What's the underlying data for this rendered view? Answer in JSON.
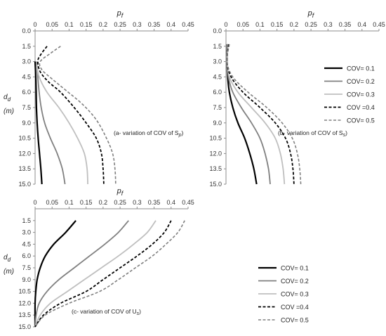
{
  "legend": {
    "entries": [
      "COV= 0.1",
      "COV= 0.2",
      "COV= 0.3",
      "COV =0.4",
      "COV= 0.5"
    ]
  },
  "series_styles": [
    {
      "color": "#000000",
      "width": 2.2,
      "dash": ""
    },
    {
      "color": "#808080",
      "width": 1.8,
      "dash": ""
    },
    {
      "color": "#bfbfbf",
      "width": 1.8,
      "dash": ""
    },
    {
      "color": "#000000",
      "width": 1.8,
      "dash": "4,2.5"
    },
    {
      "color": "#808080",
      "width": 1.6,
      "dash": "4,2.5"
    }
  ],
  "chart_data": [
    {
      "type": "line",
      "title": "(a- variation of COV of S",
      "title_sub": "p",
      "title_end": ")",
      "xlabel": "p",
      "xlabel_sub": "f",
      "ylabel": "d",
      "ylabel_sub": "d",
      "ylabel_unit": "(m)",
      "xlim": [
        0,
        0.45
      ],
      "ylim": [
        0,
        15
      ],
      "x_ticks": [
        0,
        0.05,
        0.1,
        0.15,
        0.2,
        0.25,
        0.3,
        0.35,
        0.4,
        0.45
      ],
      "y_ticks": [
        0,
        1.5,
        3,
        4.5,
        6,
        7.5,
        9,
        10.5,
        12,
        13.5,
        15
      ],
      "series": [
        {
          "name": "COV= 0.1",
          "points": [
            [
              0.0,
              3.0
            ],
            [
              0.002,
              4.5
            ],
            [
              0.003,
              6.0
            ],
            [
              0.004,
              7.5
            ],
            [
              0.006,
              9.0
            ],
            [
              0.009,
              10.5
            ],
            [
              0.013,
              12.0
            ],
            [
              0.017,
              13.5
            ],
            [
              0.02,
              15.0
            ]
          ]
        },
        {
          "name": "COV= 0.2",
          "points": [
            [
              0.005,
              3.0
            ],
            [
              0.008,
              4.5
            ],
            [
              0.012,
              6.0
            ],
            [
              0.018,
              7.5
            ],
            [
              0.028,
              9.0
            ],
            [
              0.045,
              10.5
            ],
            [
              0.065,
              12.0
            ],
            [
              0.08,
              13.5
            ],
            [
              0.088,
              15.0
            ]
          ]
        },
        {
          "name": "COV= 0.3",
          "points": [
            [
              0.005,
              3.3
            ],
            [
              0.012,
              4.5
            ],
            [
              0.035,
              6.0
            ],
            [
              0.07,
              7.5
            ],
            [
              0.1,
              9.0
            ],
            [
              0.125,
              10.5
            ],
            [
              0.145,
              12.0
            ],
            [
              0.153,
              13.5
            ],
            [
              0.155,
              15.0
            ]
          ]
        },
        {
          "name": "COV =0.4",
          "points": [
            [
              0.035,
              1.5
            ],
            [
              0.015,
              2.4
            ],
            [
              0.008,
              3.0
            ],
            [
              0.015,
              4.0
            ],
            [
              0.04,
              5.0
            ],
            [
              0.075,
              6.0
            ],
            [
              0.115,
              7.5
            ],
            [
              0.15,
              9.0
            ],
            [
              0.18,
              10.5
            ],
            [
              0.195,
              12.0
            ],
            [
              0.2,
              13.5
            ],
            [
              0.202,
              15.0
            ]
          ]
        },
        {
          "name": "COV= 0.5",
          "points": [
            [
              0.075,
              1.5
            ],
            [
              0.045,
              2.2
            ],
            [
              0.015,
              3.0
            ],
            [
              0.02,
              3.8
            ],
            [
              0.05,
              4.7
            ],
            [
              0.09,
              5.8
            ],
            [
              0.14,
              7.2
            ],
            [
              0.18,
              8.7
            ],
            [
              0.21,
              10.5
            ],
            [
              0.228,
              12.0
            ],
            [
              0.235,
              13.5
            ],
            [
              0.237,
              15.0
            ]
          ]
        }
      ]
    },
    {
      "type": "line",
      "title": "(b- variation of COV of S",
      "title_sub": "s",
      "title_end": ")",
      "xlabel": "p",
      "xlabel_sub": "f",
      "ylabel": "",
      "ylabel_sub": "",
      "ylabel_unit": "",
      "xlim": [
        0,
        0.45
      ],
      "ylim": [
        0,
        15
      ],
      "x_ticks": [
        0,
        0.05,
        0.1,
        0.15,
        0.2,
        0.25,
        0.3,
        0.35,
        0.4,
        0.45
      ],
      "y_ticks": [
        0,
        1.5,
        3,
        4.5,
        6,
        7.5,
        9,
        10.5,
        12,
        13.5,
        15
      ],
      "series": [
        {
          "name": "COV= 0.1",
          "points": [
            [
              0.004,
              1.3
            ],
            [
              0.003,
              3.0
            ],
            [
              0.005,
              4.5
            ],
            [
              0.01,
              6.0
            ],
            [
              0.02,
              7.5
            ],
            [
              0.035,
              9.0
            ],
            [
              0.055,
              10.5
            ],
            [
              0.07,
              12.0
            ],
            [
              0.082,
              13.5
            ],
            [
              0.09,
              15.0
            ]
          ]
        },
        {
          "name": "COV= 0.2",
          "points": [
            [
              0.005,
              1.3
            ],
            [
              0.003,
              3.0
            ],
            [
              0.007,
              4.5
            ],
            [
              0.02,
              6.0
            ],
            [
              0.045,
              7.5
            ],
            [
              0.075,
              9.0
            ],
            [
              0.1,
              10.5
            ],
            [
              0.115,
              12.0
            ],
            [
              0.125,
              13.5
            ],
            [
              0.13,
              15.0
            ]
          ]
        },
        {
          "name": "COV= 0.3",
          "points": [
            [
              0.006,
              1.3
            ],
            [
              0.003,
              3.0
            ],
            [
              0.01,
              4.5
            ],
            [
              0.035,
              6.0
            ],
            [
              0.075,
              7.5
            ],
            [
              0.115,
              9.0
            ],
            [
              0.145,
              10.5
            ],
            [
              0.16,
              12.0
            ],
            [
              0.168,
              13.5
            ],
            [
              0.172,
              15.0
            ]
          ]
        },
        {
          "name": "COV =0.4",
          "points": [
            [
              0.008,
              1.3
            ],
            [
              0.003,
              3.0
            ],
            [
              0.015,
              4.5
            ],
            [
              0.05,
              6.0
            ],
            [
              0.1,
              7.5
            ],
            [
              0.145,
              9.0
            ],
            [
              0.175,
              10.5
            ],
            [
              0.19,
              12.0
            ],
            [
              0.197,
              13.5
            ],
            [
              0.2,
              15.0
            ]
          ]
        },
        {
          "name": "COV= 0.5",
          "points": [
            [
              0.01,
              1.3
            ],
            [
              0.003,
              3.0
            ],
            [
              0.02,
              4.5
            ],
            [
              0.065,
              6.0
            ],
            [
              0.12,
              7.5
            ],
            [
              0.165,
              9.0
            ],
            [
              0.195,
              10.5
            ],
            [
              0.21,
              12.0
            ],
            [
              0.217,
              13.5
            ],
            [
              0.22,
              15.0
            ]
          ]
        }
      ]
    },
    {
      "type": "line",
      "title": "(c- variation of COV of U",
      "title_sub": "s",
      "title_end": ")",
      "xlabel": "p",
      "xlabel_sub": "f",
      "ylabel": "d",
      "ylabel_sub": "d",
      "ylabel_unit": "(m)",
      "xlim": [
        0,
        0.45
      ],
      "ylim": [
        0,
        15
      ],
      "x_ticks": [
        0,
        0.05,
        0.1,
        0.15,
        0.2,
        0.25,
        0.3,
        0.35,
        0.4,
        0.45
      ],
      "y_ticks": [
        1.5,
        3,
        4.5,
        6,
        7.5,
        9,
        10.5,
        12,
        13.5,
        15
      ],
      "series": [
        {
          "name": "COV= 0.1",
          "points": [
            [
              0.12,
              1.5
            ],
            [
              0.09,
              3.0
            ],
            [
              0.055,
              4.5
            ],
            [
              0.03,
              6.0
            ],
            [
              0.015,
              7.5
            ],
            [
              0.006,
              9.0
            ],
            [
              0.002,
              10.5
            ],
            [
              0.0,
              12.0
            ],
            [
              0.0,
              15.0
            ]
          ]
        },
        {
          "name": "COV= 0.2",
          "points": [
            [
              0.275,
              1.5
            ],
            [
              0.245,
              3.0
            ],
            [
              0.205,
              4.5
            ],
            [
              0.16,
              6.0
            ],
            [
              0.115,
              7.5
            ],
            [
              0.07,
              9.0
            ],
            [
              0.035,
              10.5
            ],
            [
              0.012,
              12.0
            ],
            [
              0.003,
              13.5
            ],
            [
              0.0,
              15.0
            ]
          ]
        },
        {
          "name": "COV= 0.3",
          "points": [
            [
              0.355,
              1.5
            ],
            [
              0.33,
              3.0
            ],
            [
              0.29,
              4.5
            ],
            [
              0.245,
              6.0
            ],
            [
              0.195,
              7.5
            ],
            [
              0.145,
              9.0
            ],
            [
              0.095,
              10.5
            ],
            [
              0.045,
              12.0
            ],
            [
              0.015,
              13.5
            ],
            [
              0.0,
              15.0
            ]
          ]
        },
        {
          "name": "COV =0.4",
          "points": [
            [
              0.4,
              1.5
            ],
            [
              0.38,
              3.0
            ],
            [
              0.345,
              4.5
            ],
            [
              0.3,
              6.0
            ],
            [
              0.25,
              7.5
            ],
            [
              0.2,
              9.0
            ],
            [
              0.15,
              10.5
            ],
            [
              0.075,
              12.0
            ],
            [
              0.025,
              13.5
            ],
            [
              0.0,
              15.0
            ]
          ]
        },
        {
          "name": "COV= 0.5",
          "points": [
            [
              0.44,
              1.5
            ],
            [
              0.42,
              3.0
            ],
            [
              0.385,
              4.5
            ],
            [
              0.345,
              6.0
            ],
            [
              0.295,
              7.5
            ],
            [
              0.245,
              9.0
            ],
            [
              0.19,
              10.5
            ],
            [
              0.1,
              12.0
            ],
            [
              0.03,
              13.5
            ],
            [
              0.0,
              15.0
            ]
          ]
        }
      ]
    }
  ]
}
